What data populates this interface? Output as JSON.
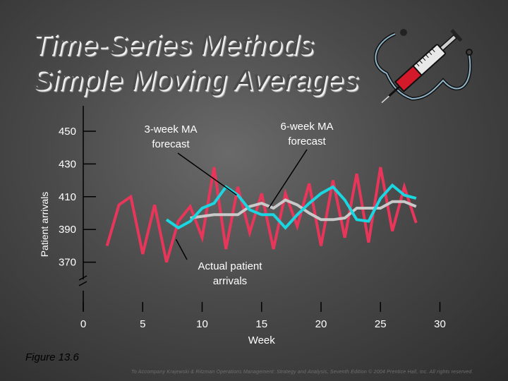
{
  "slide": {
    "title_line1": "Time-Series Methods",
    "title_line2": "Simple Moving Averages",
    "figure_caption": "Figure 13.6",
    "credit": "To Accompany Krajewski & Ritzman Operations Management: Strategy and Analysis, Seventh Edition © 2004 Prentice Hall, Inc. All rights reserved.",
    "clipart_icon": "stethoscope-syringe-icon"
  },
  "chart_data": {
    "type": "line",
    "title": "",
    "xlabel": "Week",
    "ylabel": "Patient arrivals",
    "x_ticks": [
      0,
      5,
      10,
      15,
      20,
      25,
      30
    ],
    "y_ticks": [
      370,
      390,
      410,
      430,
      450
    ],
    "y_axis_break": true,
    "grid": false,
    "series": [
      {
        "name": "Actual patient arrivals",
        "color": "#e8365a",
        "x": [
          2,
          3,
          4,
          5,
          6,
          7,
          8,
          9,
          10,
          11,
          12,
          13,
          14,
          15,
          16,
          17,
          18,
          19,
          20,
          21,
          22,
          23,
          24,
          25,
          26,
          27,
          28
        ],
        "y": [
          380,
          405,
          410,
          375,
          405,
          370,
          395,
          404,
          385,
          428,
          378,
          416,
          388,
          412,
          378,
          412,
          392,
          418,
          380,
          420,
          385,
          424,
          382,
          428,
          389,
          416,
          394
        ]
      },
      {
        "name": "3-week MA forecast",
        "color": "#1ad6e0",
        "x": [
          7,
          8,
          9,
          10,
          11,
          12,
          13,
          14,
          15,
          16,
          17,
          18,
          19,
          20,
          21,
          22,
          23,
          24,
          25,
          26,
          27,
          28
        ],
        "y": [
          396,
          391,
          395,
          403,
          406,
          416,
          411,
          402,
          399,
          399,
          391,
          399,
          406,
          412,
          416,
          408,
          396,
          395,
          409,
          417,
          411,
          409
        ]
      },
      {
        "name": "6-week MA forecast",
        "color": "#c9c9c9",
        "x": [
          9,
          10,
          11,
          12,
          13,
          14,
          15,
          16,
          17,
          18,
          19,
          20,
          21,
          22,
          23,
          24,
          25,
          26,
          27,
          28
        ],
        "y": [
          397,
          398,
          399,
          399,
          399,
          404,
          406,
          403,
          408,
          405,
          400,
          396,
          396,
          397,
          403,
          403,
          403,
          407,
          407,
          404
        ]
      }
    ],
    "annotations": [
      {
        "text": "6-week MA forecast",
        "line1": "6-week MA",
        "line2": "forecast",
        "points_to_x": 15.6,
        "points_to_y": 403
      },
      {
        "text": "3-week MA forecast",
        "line1": "3-week MA",
        "line2": "forecast",
        "points_to_x": 12.9,
        "points_to_y": 411
      },
      {
        "text": "Actual patient arrivals",
        "line1": "Actual patient",
        "line2": "arrivals",
        "points_to_x": 7.8,
        "points_to_y": 384
      }
    ]
  }
}
